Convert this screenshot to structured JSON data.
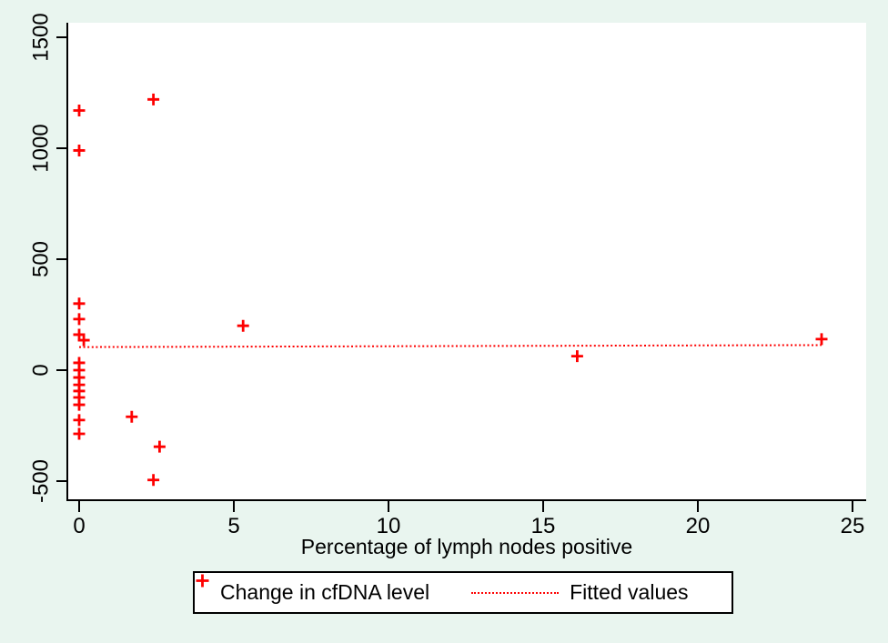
{
  "colors": {
    "page_background": "#e9f5ef",
    "plot_background": "#ffffff",
    "marker_color": "#fe0000",
    "fitted_line_color": "#fe0000",
    "axis_color": "#000000",
    "text_color": "#000000",
    "legend_border": "#000000"
  },
  "legend": {
    "items": [
      {
        "marker": "plus",
        "label": "Change in cfDNA level"
      },
      {
        "marker": "dotted-line",
        "label": "Fitted values"
      }
    ]
  },
  "chart_data": {
    "type": "scatter",
    "title": "",
    "xlabel": "Percentage of lymph nodes positive",
    "ylabel": "",
    "xlim": [
      -0.4,
      25.4
    ],
    "ylim": [
      -580,
      1565
    ],
    "x_ticks": [
      0,
      5,
      10,
      15,
      20,
      25
    ],
    "y_ticks": [
      -500,
      0,
      500,
      1000,
      1500
    ],
    "grid": false,
    "legend_position": "bottom-center",
    "series": [
      {
        "name": "Change in cfDNA level",
        "type": "scatter",
        "marker": "plus",
        "color": "#fe0000",
        "points": [
          [
            0,
            1170
          ],
          [
            0,
            990
          ],
          [
            2.4,
            1220
          ],
          [
            0,
            300
          ],
          [
            0,
            230
          ],
          [
            0,
            160
          ],
          [
            0.15,
            135
          ],
          [
            5.3,
            200
          ],
          [
            24,
            140
          ],
          [
            16.1,
            63
          ],
          [
            0,
            33
          ],
          [
            0,
            0
          ],
          [
            0,
            -33
          ],
          [
            0,
            -66
          ],
          [
            0,
            -94
          ],
          [
            0,
            -123
          ],
          [
            0,
            -156
          ],
          [
            0,
            -225
          ],
          [
            0,
            -287
          ],
          [
            1.7,
            -210
          ],
          [
            2.6,
            -345
          ],
          [
            2.4,
            -495
          ]
        ]
      },
      {
        "name": "Fitted values",
        "type": "line",
        "style": "dotted",
        "color": "#fe0000",
        "points": [
          [
            0,
            104
          ],
          [
            24,
            113
          ]
        ]
      }
    ]
  }
}
